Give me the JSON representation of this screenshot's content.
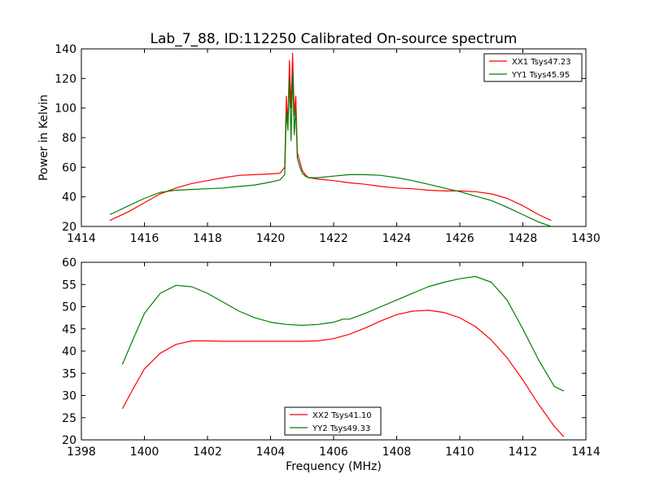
{
  "figure_title": "Lab_7_88, ID:112250 Calibrated On-source spectrum",
  "colors": {
    "xx": "#ff0000",
    "yy": "#008000",
    "axes": "#000000",
    "background": "#ffffff"
  },
  "chart_data": [
    {
      "type": "line",
      "title": "Lab_7_88, ID:112250 Calibrated On-source spectrum",
      "xlabel": "",
      "ylabel": "Power in Kelvin",
      "xlim": [
        1414,
        1430
      ],
      "ylim": [
        20,
        140
      ],
      "xticks": [
        "1414",
        "1416",
        "1418",
        "1420",
        "1422",
        "1424",
        "1426",
        "1428",
        "1430"
      ],
      "yticks": [
        "20",
        "40",
        "60",
        "80",
        "100",
        "120",
        "140"
      ],
      "grid": false,
      "legend_position": "top-right",
      "series": [
        {
          "name": "XX1 Tsys47.23",
          "color": "#ff0000",
          "x": [
            1414.9,
            1415.5,
            1416.0,
            1416.5,
            1417.0,
            1417.5,
            1418.0,
            1418.5,
            1419.0,
            1419.5,
            1420.0,
            1420.3,
            1420.45,
            1420.5,
            1420.55,
            1420.6,
            1420.65,
            1420.7,
            1420.75,
            1420.8,
            1420.85,
            1420.9,
            1420.95,
            1421.0,
            1421.1,
            1421.2,
            1421.5,
            1422.0,
            1422.5,
            1423.0,
            1423.5,
            1424.0,
            1424.5,
            1425.0,
            1425.5,
            1426.0,
            1426.5,
            1427.0,
            1427.5,
            1428.0,
            1428.5,
            1428.9
          ],
          "y": [
            24,
            30,
            36,
            42,
            46,
            49,
            51,
            53,
            54.5,
            55,
            55.5,
            56,
            60,
            108,
            90,
            132,
            100,
            137,
            95,
            108,
            70,
            66,
            62,
            58,
            55,
            53,
            52,
            51,
            49.5,
            48.5,
            47,
            46,
            45.5,
            44.5,
            44,
            44,
            43.5,
            42,
            39,
            34,
            28,
            24
          ]
        },
        {
          "name": "YY1 Tsys45.95",
          "color": "#008000",
          "x": [
            1414.9,
            1415.5,
            1416.0,
            1416.5,
            1417.0,
            1417.5,
            1418.0,
            1418.5,
            1419.0,
            1419.5,
            1420.0,
            1420.3,
            1420.45,
            1420.5,
            1420.55,
            1420.6,
            1420.65,
            1420.7,
            1420.75,
            1420.8,
            1420.85,
            1420.9,
            1420.95,
            1421.0,
            1421.1,
            1421.2,
            1421.5,
            1422.0,
            1422.5,
            1423.0,
            1423.5,
            1424.0,
            1424.5,
            1425.0,
            1425.5,
            1426.0,
            1426.5,
            1427.0,
            1427.5,
            1428.0,
            1428.5,
            1428.9
          ],
          "y": [
            28,
            34,
            39,
            43,
            44.5,
            45,
            45.5,
            46,
            47,
            48,
            50,
            51.5,
            55,
            98,
            85,
            120,
            78,
            125,
            82,
            100,
            66,
            62,
            59,
            56,
            54,
            53,
            53,
            54,
            55,
            55,
            54.5,
            53,
            51,
            48.5,
            46,
            43.5,
            40.5,
            37.5,
            33,
            28,
            23,
            20
          ]
        }
      ]
    },
    {
      "type": "line",
      "title": "",
      "xlabel": "Frequency (MHz)",
      "ylabel": "",
      "xlim": [
        1398,
        1414
      ],
      "ylim": [
        20,
        60
      ],
      "xticks": [
        "1398",
        "1400",
        "1402",
        "1404",
        "1406",
        "1408",
        "1410",
        "1412",
        "1414"
      ],
      "yticks": [
        "20",
        "25",
        "30",
        "35",
        "40",
        "45",
        "50",
        "55",
        "60"
      ],
      "grid": false,
      "legend_position": "bottom-center",
      "series": [
        {
          "name": "XX2 Tsys41.10",
          "color": "#ff0000",
          "x": [
            1399.3,
            1399.6,
            1400.0,
            1400.5,
            1401.0,
            1401.5,
            1402.0,
            1402.5,
            1403.0,
            1403.5,
            1404.0,
            1404.5,
            1405.0,
            1405.5,
            1406.0,
            1406.5,
            1407.0,
            1407.5,
            1408.0,
            1408.5,
            1409.0,
            1409.5,
            1410.0,
            1410.5,
            1411.0,
            1411.5,
            1412.0,
            1412.5,
            1413.0,
            1413.3
          ],
          "y": [
            27,
            31,
            36,
            39.5,
            41.5,
            42.3,
            42.3,
            42.2,
            42.2,
            42.2,
            42.2,
            42.2,
            42.2,
            42.3,
            42.8,
            43.8,
            45.2,
            46.8,
            48.2,
            49,
            49.2,
            48.7,
            47.5,
            45.5,
            42.5,
            38.5,
            33.5,
            28,
            23,
            20.7
          ]
        },
        {
          "name": "YY2 Tsys49.33",
          "color": "#008000",
          "x": [
            1399.3,
            1399.6,
            1400.0,
            1400.5,
            1401.0,
            1401.5,
            1402.0,
            1402.5,
            1403.0,
            1403.5,
            1404.0,
            1404.5,
            1405.0,
            1405.5,
            1406.0,
            1406.3,
            1406.5,
            1407.0,
            1407.5,
            1408.0,
            1408.5,
            1409.0,
            1409.5,
            1410.0,
            1410.5,
            1411.0,
            1411.5,
            1412.0,
            1412.5,
            1413.0,
            1413.3
          ],
          "y": [
            37,
            42,
            48.5,
            53,
            54.8,
            54.5,
            53,
            51,
            49,
            47.5,
            46.5,
            46,
            45.8,
            46,
            46.5,
            47.2,
            47.2,
            48.5,
            50,
            51.5,
            53,
            54.5,
            55.5,
            56.3,
            56.8,
            55.5,
            51.5,
            45,
            38,
            32,
            31
          ]
        }
      ]
    }
  ]
}
